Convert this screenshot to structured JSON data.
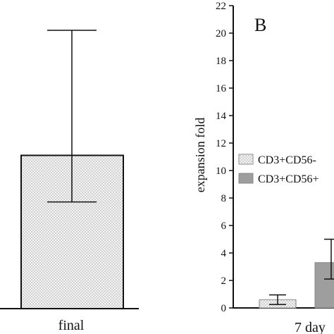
{
  "chart_data": [
    {
      "type": "bar",
      "categories": [
        "final"
      ],
      "series": [
        {
          "values": [
            12.5
          ],
          "error": {
            "upper": 22.7,
            "lower": 8.7
          },
          "pattern": "dotted"
        }
      ]
    },
    {
      "type": "bar",
      "panel_label": "B",
      "ylabel": "expansion fold",
      "ylim": [
        0,
        22
      ],
      "yticks": [
        "0",
        "2",
        "4",
        "6",
        "8",
        "10",
        "12",
        "14",
        "16",
        "18",
        "20",
        "22"
      ],
      "categories": [
        "7 day"
      ],
      "series": [
        {
          "name": "CD3+CD56-",
          "values": [
            0.6
          ],
          "error": {
            "upper": 0.95,
            "lower": 0.25
          },
          "pattern": "dotted"
        },
        {
          "name": "CD3+CD56+",
          "values": [
            3.3
          ],
          "error": {
            "upper": 5.0,
            "lower": 2.1
          },
          "pattern": "solid-gray"
        }
      ],
      "legend": "center-right"
    }
  ],
  "colors": {
    "axis": "#111111",
    "solid_bar": "#9e9e9e",
    "dot": "#7a7a7a"
  }
}
